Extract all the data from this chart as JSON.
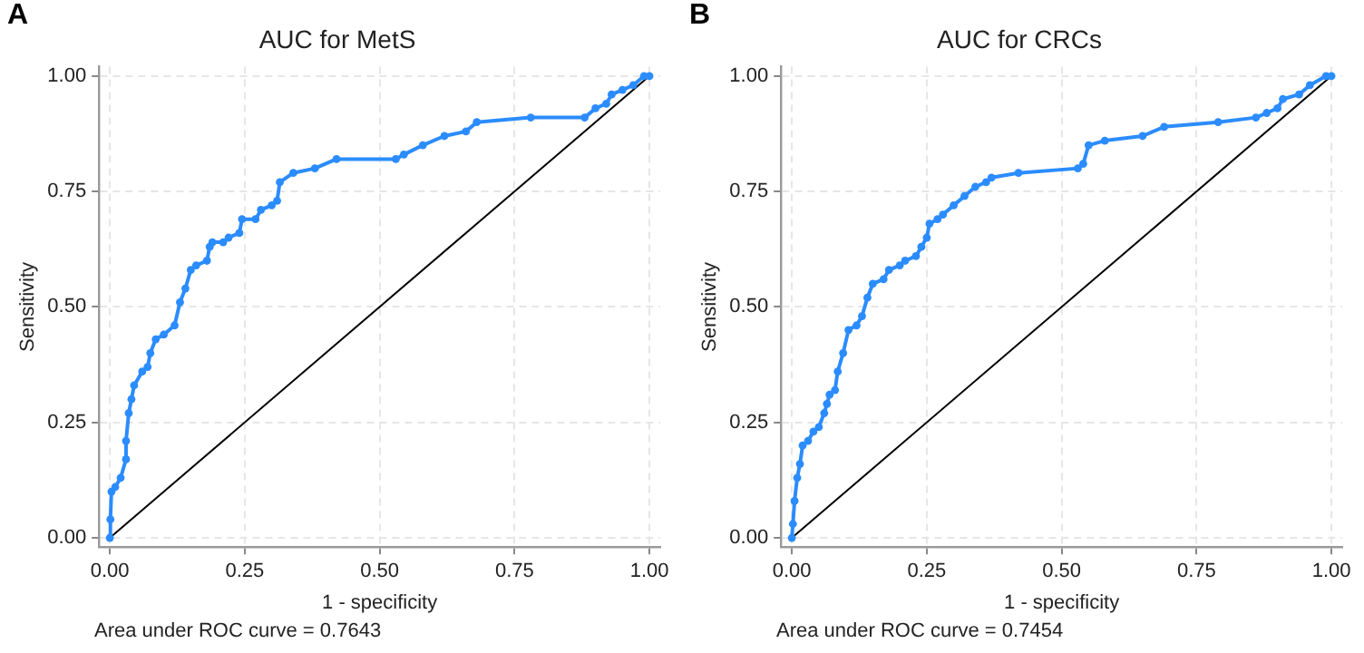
{
  "chart_data": [
    {
      "type": "line",
      "title": "AUC for MetS",
      "xlabel": "1 - specificity",
      "ylabel": "Sensitivity",
      "annotations": [
        "A",
        "Area under ROC curve = 0.7643"
      ],
      "xlim": [
        -0.02,
        1.02
      ],
      "ylim": [
        -0.02,
        1.02
      ],
      "xticks": [
        {
          "value": 0,
          "label": "0.00"
        },
        {
          "value": 0.25,
          "label": "0.25"
        },
        {
          "value": 0.5,
          "label": "0.50"
        },
        {
          "value": 0.75,
          "label": "0.75"
        },
        {
          "value": 1,
          "label": "1.00"
        }
      ],
      "yticks": [
        {
          "value": 0,
          "label": "0.00"
        },
        {
          "value": 0.25,
          "label": "0.25"
        },
        {
          "value": 0.5,
          "label": "0.50"
        },
        {
          "value": 0.75,
          "label": "0.75"
        },
        {
          "value": 1,
          "label": "1.00"
        }
      ],
      "grid": true,
      "legend": false,
      "series": [
        {
          "type": "line",
          "color": "#2b8cff",
          "marker": "circle",
          "x": [
            0,
            0.001,
            0.003,
            0.01,
            0.02,
            0.03,
            0.03,
            0.035,
            0.04,
            0.045,
            0.06,
            0.07,
            0.075,
            0.085,
            0.1,
            0.12,
            0.13,
            0.14,
            0.15,
            0.16,
            0.18,
            0.185,
            0.19,
            0.21,
            0.22,
            0.24,
            0.245,
            0.27,
            0.28,
            0.3,
            0.31,
            0.315,
            0.34,
            0.38,
            0.42,
            0.53,
            0.545,
            0.58,
            0.62,
            0.66,
            0.68,
            0.78,
            0.88,
            0.9,
            0.92,
            0.93,
            0.95,
            0.97,
            0.99,
            1
          ],
          "values": [
            0,
            0.04,
            0.1,
            0.11,
            0.13,
            0.17,
            0.21,
            0.27,
            0.3,
            0.33,
            0.36,
            0.37,
            0.4,
            0.43,
            0.44,
            0.46,
            0.51,
            0.54,
            0.58,
            0.59,
            0.6,
            0.63,
            0.64,
            0.64,
            0.65,
            0.66,
            0.69,
            0.69,
            0.71,
            0.72,
            0.73,
            0.77,
            0.79,
            0.8,
            0.82,
            0.82,
            0.83,
            0.85,
            0.87,
            0.88,
            0.9,
            0.91,
            0.91,
            0.93,
            0.94,
            0.96,
            0.97,
            0.98,
            1,
            1
          ]
        },
        {
          "type": "line",
          "color": "#000000",
          "marker": "none",
          "x": [
            0,
            1
          ],
          "values": [
            0,
            1
          ]
        }
      ]
    },
    {
      "type": "line",
      "title": "AUC for CRCs",
      "xlabel": "1 - specificity",
      "ylabel": "Sensitivity",
      "annotations": [
        "B",
        "Area under ROC curve = 0.7454"
      ],
      "xlim": [
        -0.02,
        1.02
      ],
      "ylim": [
        -0.02,
        1.02
      ],
      "xticks": [
        {
          "value": 0,
          "label": "0.00"
        },
        {
          "value": 0.25,
          "label": "0.25"
        },
        {
          "value": 0.5,
          "label": "0.50"
        },
        {
          "value": 0.75,
          "label": "0.75"
        },
        {
          "value": 1,
          "label": "1.00"
        }
      ],
      "yticks": [
        {
          "value": 0,
          "label": "0.00"
        },
        {
          "value": 0.25,
          "label": "0.25"
        },
        {
          "value": 0.5,
          "label": "0.50"
        },
        {
          "value": 0.75,
          "label": "0.75"
        },
        {
          "value": 1,
          "label": "1.00"
        }
      ],
      "grid": true,
      "legend": false,
      "series": [
        {
          "type": "line",
          "color": "#2b8cff",
          "marker": "circle",
          "x": [
            0,
            0.002,
            0.005,
            0.01,
            0.015,
            0.02,
            0.03,
            0.04,
            0.05,
            0.06,
            0.065,
            0.07,
            0.08,
            0.085,
            0.095,
            0.105,
            0.12,
            0.13,
            0.14,
            0.15,
            0.17,
            0.18,
            0.2,
            0.21,
            0.23,
            0.24,
            0.25,
            0.255,
            0.27,
            0.28,
            0.3,
            0.32,
            0.34,
            0.36,
            0.37,
            0.42,
            0.53,
            0.54,
            0.55,
            0.58,
            0.65,
            0.69,
            0.79,
            0.86,
            0.88,
            0.9,
            0.91,
            0.94,
            0.96,
            0.99,
            1
          ],
          "values": [
            0,
            0.03,
            0.08,
            0.13,
            0.16,
            0.2,
            0.21,
            0.23,
            0.24,
            0.27,
            0.29,
            0.31,
            0.32,
            0.36,
            0.4,
            0.45,
            0.46,
            0.48,
            0.52,
            0.55,
            0.56,
            0.58,
            0.59,
            0.6,
            0.61,
            0.63,
            0.65,
            0.68,
            0.69,
            0.7,
            0.72,
            0.74,
            0.76,
            0.77,
            0.78,
            0.79,
            0.8,
            0.81,
            0.85,
            0.86,
            0.87,
            0.89,
            0.9,
            0.91,
            0.92,
            0.93,
            0.95,
            0.96,
            0.98,
            1,
            1
          ]
        },
        {
          "type": "line",
          "color": "#000000",
          "marker": "none",
          "x": [
            0,
            1
          ],
          "values": [
            0,
            1
          ]
        }
      ]
    }
  ]
}
